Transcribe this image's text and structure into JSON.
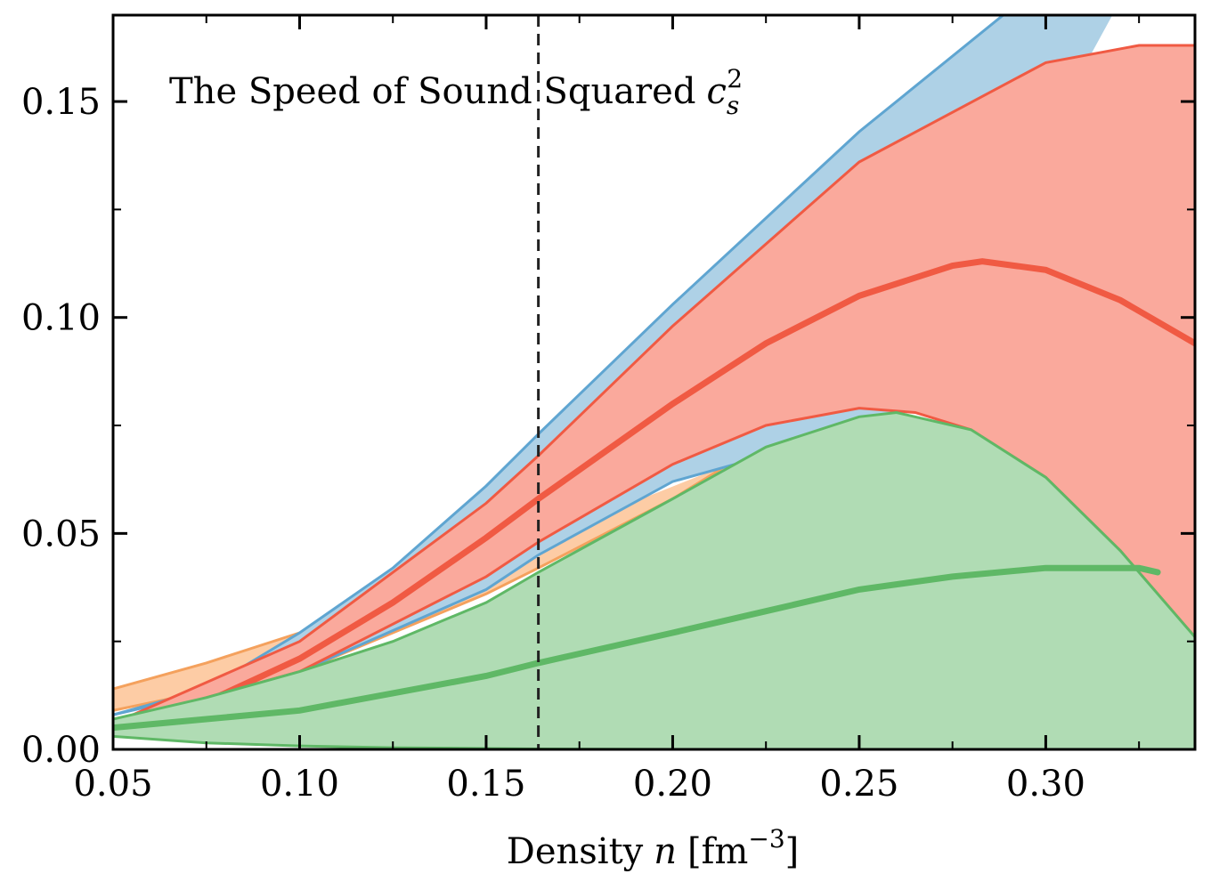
{
  "chart_data": {
    "type": "area",
    "title": "The Speed of Sound Squared",
    "title_symbol": "c",
    "title_symbol_sub": "s",
    "title_symbol_sup": "2",
    "xlabel": "Density",
    "xlabel_symbol": "n",
    "xlabel_unit": "[fm",
    "xlabel_unit_sup": "−3",
    "xlabel_unit_close": "]",
    "xlim": [
      0.05,
      0.34
    ],
    "ylim": [
      0.0,
      0.17
    ],
    "xticks": [
      "0.05",
      "0.10",
      "0.15",
      "0.20",
      "0.25",
      "0.30"
    ],
    "yticks": [
      "0.00",
      "0.05",
      "0.10",
      "0.15"
    ],
    "grid": false,
    "reference_line": {
      "x": 0.164,
      "style": "dashed",
      "color": "#222222"
    },
    "series": [
      {
        "color": "#f4a15d",
        "fill": "#fdcca5",
        "lower": [
          [
            0.05,
            0.009
          ],
          [
            0.1,
            0.018
          ],
          [
            0.15,
            0.036
          ],
          [
            0.164,
            0.042
          ],
          [
            0.2,
            0.058
          ],
          [
            0.215,
            0.066
          ]
        ],
        "upper": [
          [
            0.05,
            0.014
          ],
          [
            0.075,
            0.02
          ],
          [
            0.1,
            0.027
          ],
          [
            0.11,
            0.03
          ]
        ]
      },
      {
        "color": "#5fa5d1",
        "fill": "#aed1e6",
        "lower": [
          [
            0.05,
            0.008
          ],
          [
            0.1,
            0.018
          ],
          [
            0.15,
            0.037
          ],
          [
            0.164,
            0.045
          ],
          [
            0.2,
            0.062
          ],
          [
            0.25,
            0.074
          ],
          [
            0.26,
            0.0785
          ]
        ],
        "upper": [
          [
            0.05,
            0.008
          ],
          [
            0.075,
            0.014
          ],
          [
            0.1,
            0.027
          ],
          [
            0.125,
            0.042
          ],
          [
            0.15,
            0.061
          ],
          [
            0.164,
            0.073
          ],
          [
            0.2,
            0.103
          ],
          [
            0.25,
            0.143
          ],
          [
            0.3,
            0.178
          ],
          [
            0.34,
            0.205
          ]
        ]
      },
      {
        "color": "#f05a43",
        "fill": "#faa99c",
        "median": [
          [
            0.05,
            0.006
          ],
          [
            0.075,
            0.011
          ],
          [
            0.1,
            0.021
          ],
          [
            0.125,
            0.034
          ],
          [
            0.15,
            0.049
          ],
          [
            0.164,
            0.058
          ],
          [
            0.2,
            0.08
          ],
          [
            0.225,
            0.094
          ],
          [
            0.25,
            0.105
          ],
          [
            0.275,
            0.112
          ],
          [
            0.283,
            0.113
          ],
          [
            0.3,
            0.111
          ],
          [
            0.32,
            0.104
          ],
          [
            0.34,
            0.094
          ]
        ],
        "lower": [
          [
            0.05,
            0.006
          ],
          [
            0.1,
            0.018
          ],
          [
            0.15,
            0.04
          ],
          [
            0.164,
            0.048
          ],
          [
            0.2,
            0.066
          ],
          [
            0.225,
            0.075
          ],
          [
            0.25,
            0.079
          ],
          [
            0.265,
            0.078
          ],
          [
            0.28,
            0.074
          ],
          [
            0.3,
            0.063
          ],
          [
            0.32,
            0.046
          ],
          [
            0.34,
            0.026
          ]
        ],
        "upper": [
          [
            0.05,
            0.006
          ],
          [
            0.1,
            0.025
          ],
          [
            0.15,
            0.057
          ],
          [
            0.164,
            0.068
          ],
          [
            0.2,
            0.098
          ],
          [
            0.25,
            0.136
          ],
          [
            0.3,
            0.159
          ],
          [
            0.325,
            0.163
          ],
          [
            0.34,
            0.163
          ]
        ]
      },
      {
        "color": "#5fb866",
        "fill": "#b0dcb4",
        "median": [
          [
            0.05,
            0.005
          ],
          [
            0.075,
            0.007
          ],
          [
            0.1,
            0.009
          ],
          [
            0.125,
            0.013
          ],
          [
            0.15,
            0.017
          ],
          [
            0.164,
            0.02
          ],
          [
            0.2,
            0.027
          ],
          [
            0.225,
            0.032
          ],
          [
            0.25,
            0.037
          ],
          [
            0.275,
            0.04
          ],
          [
            0.3,
            0.042
          ],
          [
            0.325,
            0.042
          ],
          [
            0.33,
            0.041
          ]
        ],
        "lower": [
          [
            0.05,
            0.003
          ],
          [
            0.075,
            0.0015
          ],
          [
            0.1,
            0.0008
          ],
          [
            0.125,
            0.0004
          ],
          [
            0.15,
            0.0002
          ],
          [
            0.164,
            0.0001
          ],
          [
            0.2,
            0.0
          ],
          [
            0.34,
            0.0
          ]
        ],
        "upper": [
          [
            0.05,
            0.007
          ],
          [
            0.075,
            0.012
          ],
          [
            0.1,
            0.018
          ],
          [
            0.125,
            0.025
          ],
          [
            0.15,
            0.034
          ],
          [
            0.164,
            0.041
          ],
          [
            0.2,
            0.058
          ],
          [
            0.225,
            0.07
          ],
          [
            0.25,
            0.077
          ],
          [
            0.26,
            0.078
          ],
          [
            0.28,
            0.074
          ],
          [
            0.3,
            0.063
          ],
          [
            0.32,
            0.046
          ],
          [
            0.34,
            0.026
          ]
        ]
      }
    ]
  }
}
